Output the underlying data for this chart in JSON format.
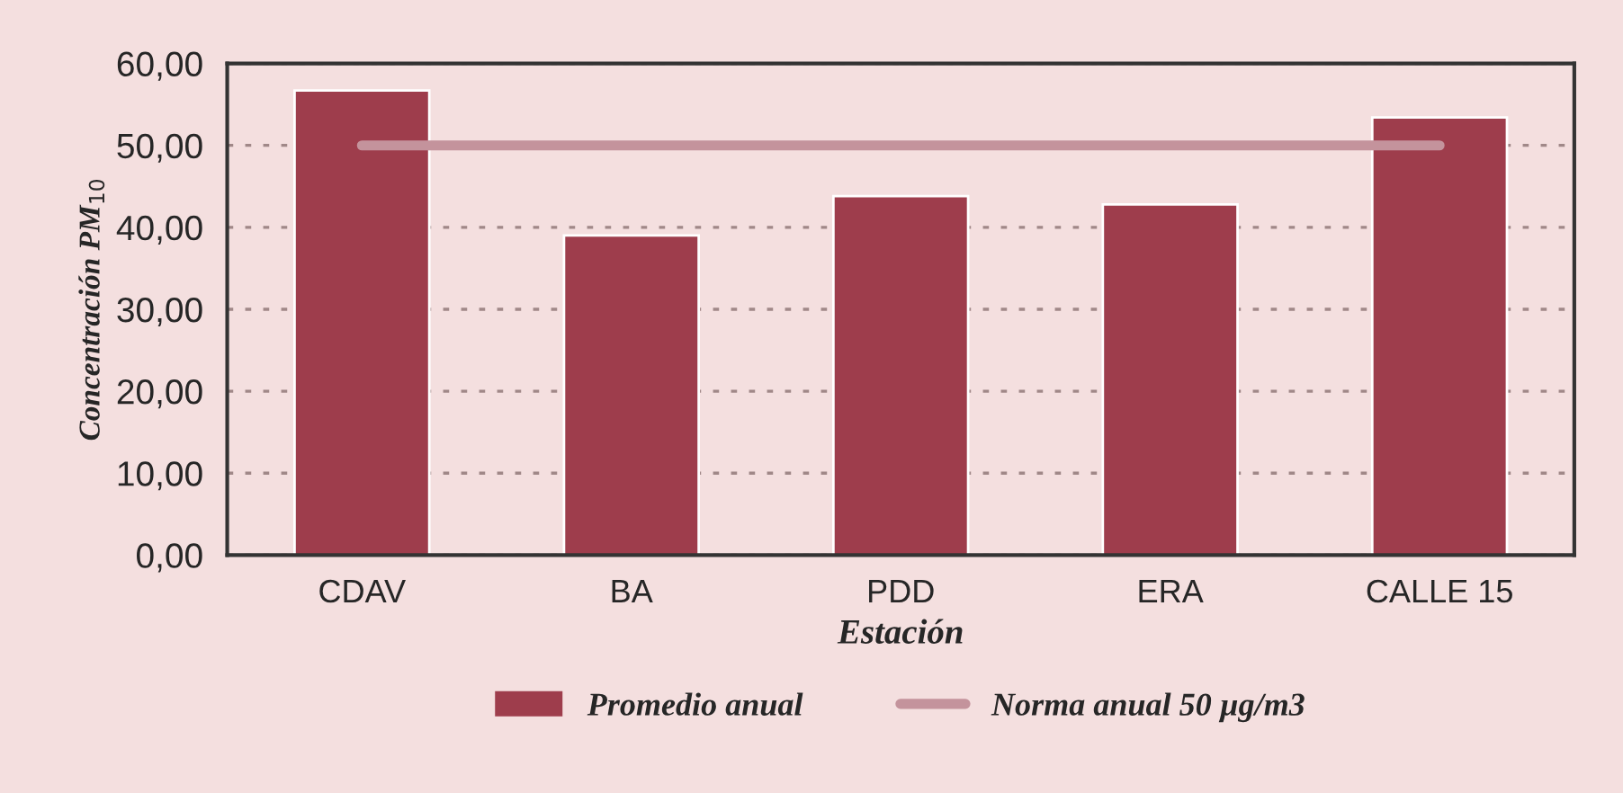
{
  "chart_data": {
    "type": "bar",
    "xlabel": "Estación",
    "ylabel": "Concentración PM$_{10}$",
    "categories": [
      "CDAV",
      "BA",
      "PDD",
      "ERA",
      "CALLE 15"
    ],
    "series": [
      {
        "name": "Promedio anual",
        "color": "#9e3d4c",
        "values": [
          56.7,
          39.0,
          43.8,
          42.8,
          53.4
        ]
      },
      {
        "name": "Norma anual 50 µg/m3",
        "type": "line",
        "color": "#c4939c",
        "values": [
          50,
          50,
          50,
          50,
          50
        ]
      }
    ],
    "ylim": [
      0,
      60
    ],
    "yticks": [
      {
        "value": 0,
        "label": "0,00"
      },
      {
        "value": 10,
        "label": "10,00"
      },
      {
        "value": 20,
        "label": "20,00"
      },
      {
        "value": 30,
        "label": "30,00"
      },
      {
        "value": 40,
        "label": "40,00"
      },
      {
        "value": 50,
        "label": "50,00"
      },
      {
        "value": 60,
        "label": "60,00"
      }
    ],
    "grid": "y",
    "legend": "bottom"
  }
}
